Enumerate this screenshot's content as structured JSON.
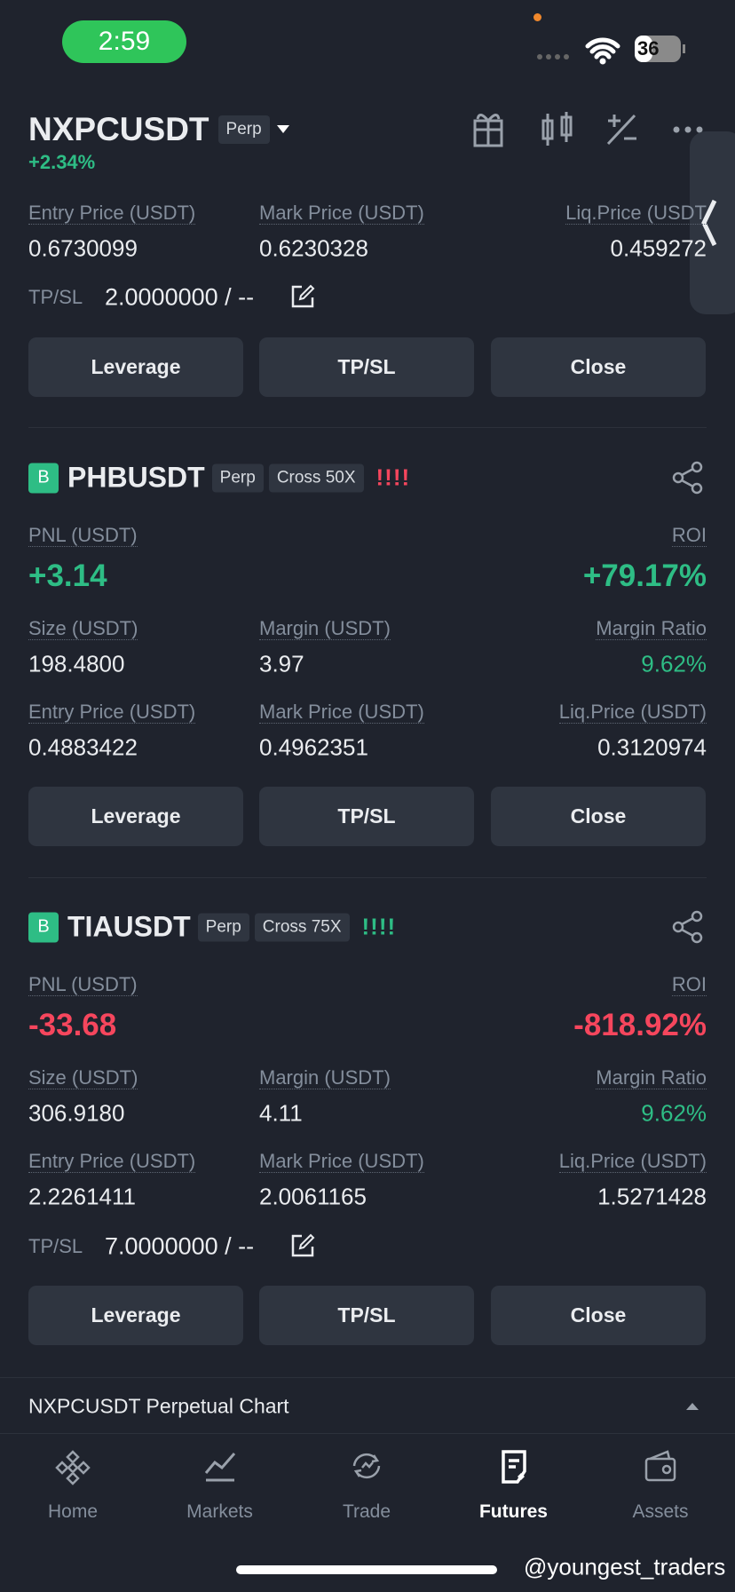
{
  "status_bar": {
    "time": "2:59",
    "battery": "36"
  },
  "header": {
    "symbol": "NXPCUSDT",
    "badge": "Perp",
    "change": "+2.34%"
  },
  "top_position": {
    "fields": [
      {
        "label": "Entry Price (USDT)",
        "value": "0.6730099"
      },
      {
        "label": "Mark Price (USDT)",
        "value": "0.6230328"
      },
      {
        "label": "Liq.Price (USDT",
        "value": "0.459272"
      }
    ],
    "tpsl_label": "TP/SL",
    "tpsl_value": "2.0000000 / --",
    "buttons": [
      "Leverage",
      "TP/SL",
      "Close"
    ]
  },
  "positions": [
    {
      "side": "B",
      "symbol": "PHBUSDT",
      "badges": [
        "Perp",
        "Cross 50X"
      ],
      "risk": "!!!!",
      "pnl_label": "PNL (USDT)",
      "pnl": "+3.14",
      "roi_label": "ROI",
      "roi": "+79.17%",
      "rows": [
        [
          {
            "label": "Size (USDT)",
            "value": "198.4800"
          },
          {
            "label": "Margin (USDT)",
            "value": "3.97"
          },
          {
            "label": "Margin Ratio",
            "value": "9.62%"
          }
        ],
        [
          {
            "label": "Entry Price (USDT)",
            "value": "0.4883422"
          },
          {
            "label": "Mark Price (USDT)",
            "value": "0.4962351"
          },
          {
            "label": "Liq.Price (USDT)",
            "value": "0.3120974"
          }
        ]
      ],
      "buttons": [
        "Leverage",
        "TP/SL",
        "Close"
      ]
    },
    {
      "side": "B",
      "symbol": "TIAUSDT",
      "badges": [
        "Perp",
        "Cross 75X"
      ],
      "risk": "!!!!",
      "pnl_label": "PNL (USDT)",
      "pnl": "-33.68",
      "roi_label": "ROI",
      "roi": "-818.92%",
      "rows": [
        [
          {
            "label": "Size (USDT)",
            "value": "306.9180"
          },
          {
            "label": "Margin (USDT)",
            "value": "4.11"
          },
          {
            "label": "Margin Ratio",
            "value": "9.62%"
          }
        ],
        [
          {
            "label": "Entry Price (USDT)",
            "value": "2.2261411"
          },
          {
            "label": "Mark Price (USDT)",
            "value": "2.0061165"
          },
          {
            "label": "Liq.Price (USDT)",
            "value": "1.5271428"
          }
        ]
      ],
      "tpsl_label": "TP/SL",
      "tpsl_value": "7.0000000 / --",
      "buttons": [
        "Leverage",
        "TP/SL",
        "Close"
      ]
    }
  ],
  "chart_bar": "NXPCUSDT Perpetual  Chart",
  "nav": [
    "Home",
    "Markets",
    "Trade",
    "Futures",
    "Assets"
  ],
  "watermark": "@youngest_traders"
}
